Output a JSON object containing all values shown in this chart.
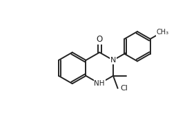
{
  "bg_color": "#ffffff",
  "line_color": "#222222",
  "line_width": 1.4,
  "text_color": "#222222",
  "font_size": 7.5,
  "lbl_O": "O",
  "lbl_N": "N",
  "lbl_NH": "NH",
  "lbl_Cl": "Cl",
  "lbl_me": "CH₃"
}
